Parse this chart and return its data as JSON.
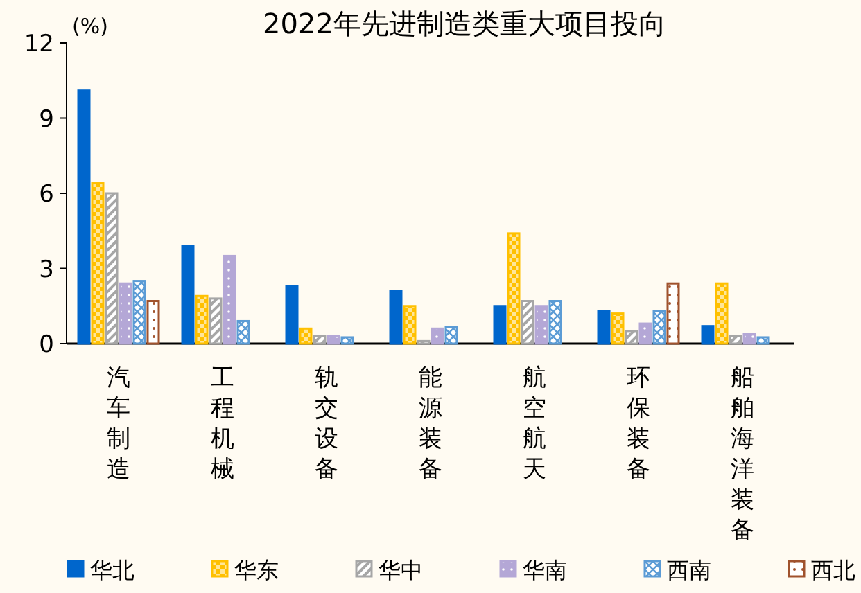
{
  "chart_data": {
    "type": "bar",
    "title": "2022年先进制造类重大项目投向",
    "ylabel": "(%)",
    "categories": [
      "汽车制造",
      "工程机械",
      "轨交设备",
      "能源装备",
      "航空航天",
      "环保装备",
      "船舶海洋装备"
    ],
    "series": [
      {
        "name": "华北",
        "color": "#0066cc",
        "values": [
          10.1,
          3.9,
          2.3,
          2.1,
          1.5,
          1.3,
          0.7
        ]
      },
      {
        "name": "华东",
        "color": "#ffc000",
        "values": [
          6.4,
          1.9,
          0.6,
          1.5,
          4.4,
          1.2,
          2.4
        ]
      },
      {
        "name": "华中",
        "color": "#a6a6a6",
        "values": [
          6.0,
          1.8,
          0.3,
          0.1,
          1.7,
          0.5,
          0.3
        ]
      },
      {
        "name": "华南",
        "color": "#b4a7d6",
        "values": [
          2.4,
          3.5,
          0.3,
          0.6,
          1.5,
          0.8,
          0.4
        ]
      },
      {
        "name": "西南",
        "color": "#5b9bd5",
        "values": [
          2.5,
          0.9,
          0.25,
          0.65,
          1.7,
          1.3,
          0.25
        ]
      },
      {
        "name": "西北",
        "color": "#a0522d",
        "values": [
          1.7,
          null,
          null,
          null,
          null,
          2.4,
          null
        ]
      }
    ],
    "ylim": [
      0,
      12
    ],
    "yticks": [
      0,
      3,
      6,
      9,
      12
    ],
    "grid": false,
    "legend": "bottom"
  }
}
